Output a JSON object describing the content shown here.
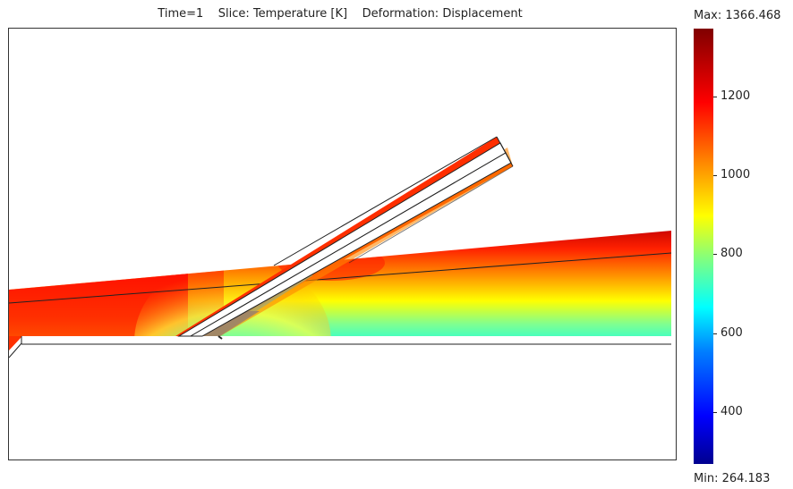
{
  "title": "Time=1    Slice: Temperature [K]    Deformation: Displacement",
  "colorbar": {
    "max_label": "Max: 1366.468",
    "min_label": "Min: 264.183",
    "ticks": [
      "1200",
      "1000",
      "800",
      "600",
      "400"
    ]
  },
  "colors": {
    "hot": "#cc0000",
    "warm": "#ff4000",
    "cool": "#00c8c8",
    "cold": "#0060ff"
  }
}
